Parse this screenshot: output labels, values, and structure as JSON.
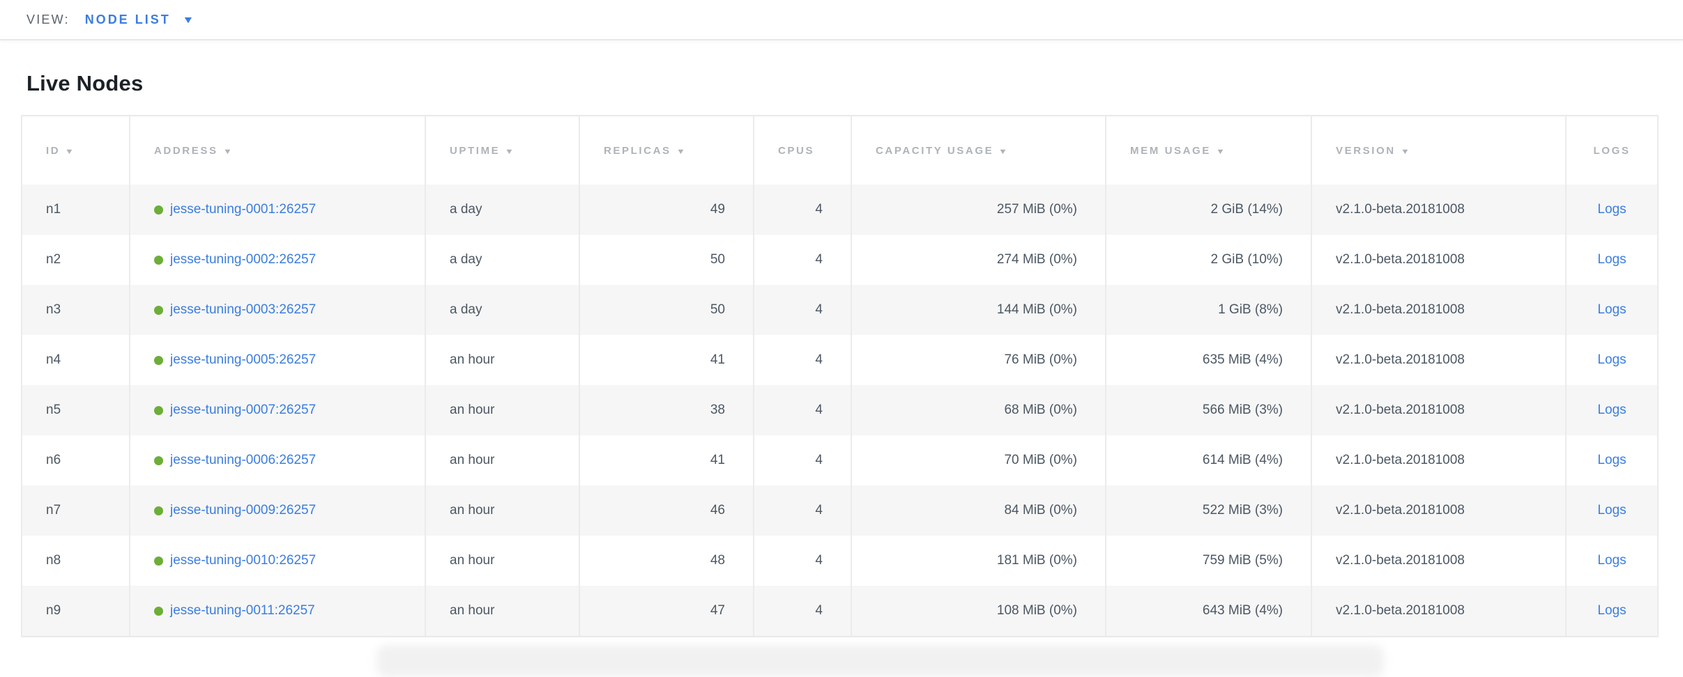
{
  "view_bar": {
    "label": "VIEW:",
    "selected": "NODE LIST",
    "caret_icon": "triangle-down"
  },
  "page": {
    "title": "Live Nodes"
  },
  "colors": {
    "link_blue": "#3b7de1",
    "status_live_green": "#6cae38",
    "header_text": "#aeb3b9",
    "cell_text": "#4c5763",
    "row_alt_bg": "#f6f6f6"
  },
  "table": {
    "sort_icon": "▼",
    "logs_label": "Logs",
    "columns": [
      {
        "key": "id",
        "label": "ID",
        "sorted": true,
        "align": "left"
      },
      {
        "key": "address",
        "label": "ADDRESS",
        "sorted": true,
        "align": "left"
      },
      {
        "key": "uptime",
        "label": "UPTIME",
        "sorted": true,
        "align": "left"
      },
      {
        "key": "replicas",
        "label": "REPLICAS",
        "sorted": true,
        "align": "right"
      },
      {
        "key": "cpus",
        "label": "CPUS",
        "sorted": false,
        "align": "right"
      },
      {
        "key": "capacity",
        "label": "CAPACITY USAGE",
        "sorted": true,
        "align": "right"
      },
      {
        "key": "mem",
        "label": "MEM USAGE",
        "sorted": true,
        "align": "right"
      },
      {
        "key": "version",
        "label": "VERSION",
        "sorted": true,
        "align": "left"
      },
      {
        "key": "logs",
        "label": "LOGS",
        "sorted": false,
        "align": "center"
      }
    ],
    "rows": [
      {
        "id": "n1",
        "status": "live",
        "address": "jesse-tuning-0001:26257",
        "uptime": "a day",
        "replicas": "49",
        "cpus": "4",
        "capacity": "257 MiB (0%)",
        "mem": "2 GiB (14%)",
        "version": "v2.1.0-beta.20181008"
      },
      {
        "id": "n2",
        "status": "live",
        "address": "jesse-tuning-0002:26257",
        "uptime": "a day",
        "replicas": "50",
        "cpus": "4",
        "capacity": "274 MiB (0%)",
        "mem": "2 GiB (10%)",
        "version": "v2.1.0-beta.20181008"
      },
      {
        "id": "n3",
        "status": "live",
        "address": "jesse-tuning-0003:26257",
        "uptime": "a day",
        "replicas": "50",
        "cpus": "4",
        "capacity": "144 MiB (0%)",
        "mem": "1 GiB (8%)",
        "version": "v2.1.0-beta.20181008"
      },
      {
        "id": "n4",
        "status": "live",
        "address": "jesse-tuning-0005:26257",
        "uptime": "an hour",
        "replicas": "41",
        "cpus": "4",
        "capacity": "76 MiB (0%)",
        "mem": "635 MiB (4%)",
        "version": "v2.1.0-beta.20181008"
      },
      {
        "id": "n5",
        "status": "live",
        "address": "jesse-tuning-0007:26257",
        "uptime": "an hour",
        "replicas": "38",
        "cpus": "4",
        "capacity": "68 MiB (0%)",
        "mem": "566 MiB (3%)",
        "version": "v2.1.0-beta.20181008"
      },
      {
        "id": "n6",
        "status": "live",
        "address": "jesse-tuning-0006:26257",
        "uptime": "an hour",
        "replicas": "41",
        "cpus": "4",
        "capacity": "70 MiB (0%)",
        "mem": "614 MiB (4%)",
        "version": "v2.1.0-beta.20181008"
      },
      {
        "id": "n7",
        "status": "live",
        "address": "jesse-tuning-0009:26257",
        "uptime": "an hour",
        "replicas": "46",
        "cpus": "4",
        "capacity": "84 MiB (0%)",
        "mem": "522 MiB (3%)",
        "version": "v2.1.0-beta.20181008"
      },
      {
        "id": "n8",
        "status": "live",
        "address": "jesse-tuning-0010:26257",
        "uptime": "an hour",
        "replicas": "48",
        "cpus": "4",
        "capacity": "181 MiB (0%)",
        "mem": "759 MiB (5%)",
        "version": "v2.1.0-beta.20181008"
      },
      {
        "id": "n9",
        "status": "live",
        "address": "jesse-tuning-0011:26257",
        "uptime": "an hour",
        "replicas": "47",
        "cpus": "4",
        "capacity": "108 MiB (0%)",
        "mem": "643 MiB (4%)",
        "version": "v2.1.0-beta.20181008"
      }
    ]
  }
}
